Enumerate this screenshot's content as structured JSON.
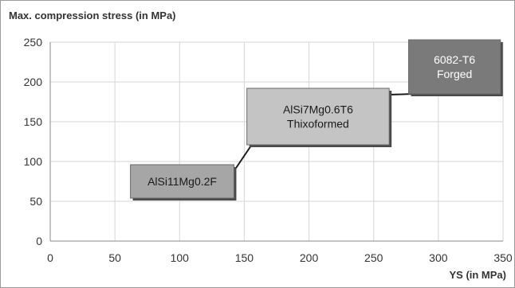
{
  "chart_data": {
    "type": "scatter",
    "title": "",
    "ylabel": "Max. compression stress (in MPa)",
    "xlabel": "YS (in MPa)",
    "xlim": [
      0,
      350
    ],
    "ylim": [
      0,
      250
    ],
    "x_ticks": [
      "0",
      "50",
      "100",
      "150",
      "200",
      "250",
      "300",
      "350"
    ],
    "y_ticks": [
      "0",
      "50",
      "100",
      "150",
      "200",
      "250"
    ],
    "grid": true,
    "series": [
      {
        "label": "AlSi11Mg0.2F",
        "x_range": [
          62,
          142
        ],
        "y_range": [
          54,
          96
        ],
        "color": "#a6a6a6",
        "text_color": "#1a1a1a"
      },
      {
        "label": "AlSi7Mg0.6T6 Thixoformed",
        "x_range": [
          152,
          262
        ],
        "y_range": [
          121,
          192
        ],
        "color": "#c4c4c4",
        "text_color": "#1a1a1a"
      },
      {
        "label": "6082-T6 Forged",
        "x_range": [
          277,
          348
        ],
        "y_range": [
          185,
          258
        ],
        "color": "#7a7a7a",
        "text_color": "#ffffff"
      }
    ],
    "annotations": [
      {
        "from_series": 0,
        "to_series": 1
      },
      {
        "from_series": 1,
        "to_series": 2
      }
    ]
  }
}
